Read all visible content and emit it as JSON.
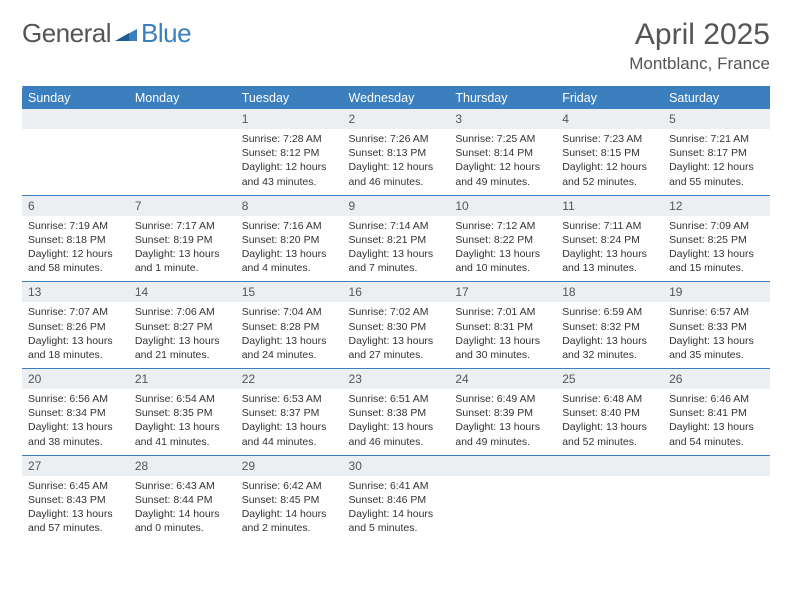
{
  "brand": {
    "word1": "General",
    "word2": "Blue"
  },
  "header": {
    "month": "April 2025",
    "location": "Montblanc, France"
  },
  "colors": {
    "accent": "#3b7fbf",
    "daybar": "#eceff1",
    "text": "#333",
    "header_text": "#555"
  },
  "weekdays": [
    "Sunday",
    "Monday",
    "Tuesday",
    "Wednesday",
    "Thursday",
    "Friday",
    "Saturday"
  ],
  "weeks": [
    [
      null,
      null,
      {
        "n": "1",
        "sr": "Sunrise: 7:28 AM",
        "ss": "Sunset: 8:12 PM",
        "dl": "Daylight: 12 hours and 43 minutes."
      },
      {
        "n": "2",
        "sr": "Sunrise: 7:26 AM",
        "ss": "Sunset: 8:13 PM",
        "dl": "Daylight: 12 hours and 46 minutes."
      },
      {
        "n": "3",
        "sr": "Sunrise: 7:25 AM",
        "ss": "Sunset: 8:14 PM",
        "dl": "Daylight: 12 hours and 49 minutes."
      },
      {
        "n": "4",
        "sr": "Sunrise: 7:23 AM",
        "ss": "Sunset: 8:15 PM",
        "dl": "Daylight: 12 hours and 52 minutes."
      },
      {
        "n": "5",
        "sr": "Sunrise: 7:21 AM",
        "ss": "Sunset: 8:17 PM",
        "dl": "Daylight: 12 hours and 55 minutes."
      }
    ],
    [
      {
        "n": "6",
        "sr": "Sunrise: 7:19 AM",
        "ss": "Sunset: 8:18 PM",
        "dl": "Daylight: 12 hours and 58 minutes."
      },
      {
        "n": "7",
        "sr": "Sunrise: 7:17 AM",
        "ss": "Sunset: 8:19 PM",
        "dl": "Daylight: 13 hours and 1 minute."
      },
      {
        "n": "8",
        "sr": "Sunrise: 7:16 AM",
        "ss": "Sunset: 8:20 PM",
        "dl": "Daylight: 13 hours and 4 minutes."
      },
      {
        "n": "9",
        "sr": "Sunrise: 7:14 AM",
        "ss": "Sunset: 8:21 PM",
        "dl": "Daylight: 13 hours and 7 minutes."
      },
      {
        "n": "10",
        "sr": "Sunrise: 7:12 AM",
        "ss": "Sunset: 8:22 PM",
        "dl": "Daylight: 13 hours and 10 minutes."
      },
      {
        "n": "11",
        "sr": "Sunrise: 7:11 AM",
        "ss": "Sunset: 8:24 PM",
        "dl": "Daylight: 13 hours and 13 minutes."
      },
      {
        "n": "12",
        "sr": "Sunrise: 7:09 AM",
        "ss": "Sunset: 8:25 PM",
        "dl": "Daylight: 13 hours and 15 minutes."
      }
    ],
    [
      {
        "n": "13",
        "sr": "Sunrise: 7:07 AM",
        "ss": "Sunset: 8:26 PM",
        "dl": "Daylight: 13 hours and 18 minutes."
      },
      {
        "n": "14",
        "sr": "Sunrise: 7:06 AM",
        "ss": "Sunset: 8:27 PM",
        "dl": "Daylight: 13 hours and 21 minutes."
      },
      {
        "n": "15",
        "sr": "Sunrise: 7:04 AM",
        "ss": "Sunset: 8:28 PM",
        "dl": "Daylight: 13 hours and 24 minutes."
      },
      {
        "n": "16",
        "sr": "Sunrise: 7:02 AM",
        "ss": "Sunset: 8:30 PM",
        "dl": "Daylight: 13 hours and 27 minutes."
      },
      {
        "n": "17",
        "sr": "Sunrise: 7:01 AM",
        "ss": "Sunset: 8:31 PM",
        "dl": "Daylight: 13 hours and 30 minutes."
      },
      {
        "n": "18",
        "sr": "Sunrise: 6:59 AM",
        "ss": "Sunset: 8:32 PM",
        "dl": "Daylight: 13 hours and 32 minutes."
      },
      {
        "n": "19",
        "sr": "Sunrise: 6:57 AM",
        "ss": "Sunset: 8:33 PM",
        "dl": "Daylight: 13 hours and 35 minutes."
      }
    ],
    [
      {
        "n": "20",
        "sr": "Sunrise: 6:56 AM",
        "ss": "Sunset: 8:34 PM",
        "dl": "Daylight: 13 hours and 38 minutes."
      },
      {
        "n": "21",
        "sr": "Sunrise: 6:54 AM",
        "ss": "Sunset: 8:35 PM",
        "dl": "Daylight: 13 hours and 41 minutes."
      },
      {
        "n": "22",
        "sr": "Sunrise: 6:53 AM",
        "ss": "Sunset: 8:37 PM",
        "dl": "Daylight: 13 hours and 44 minutes."
      },
      {
        "n": "23",
        "sr": "Sunrise: 6:51 AM",
        "ss": "Sunset: 8:38 PM",
        "dl": "Daylight: 13 hours and 46 minutes."
      },
      {
        "n": "24",
        "sr": "Sunrise: 6:49 AM",
        "ss": "Sunset: 8:39 PM",
        "dl": "Daylight: 13 hours and 49 minutes."
      },
      {
        "n": "25",
        "sr": "Sunrise: 6:48 AM",
        "ss": "Sunset: 8:40 PM",
        "dl": "Daylight: 13 hours and 52 minutes."
      },
      {
        "n": "26",
        "sr": "Sunrise: 6:46 AM",
        "ss": "Sunset: 8:41 PM",
        "dl": "Daylight: 13 hours and 54 minutes."
      }
    ],
    [
      {
        "n": "27",
        "sr": "Sunrise: 6:45 AM",
        "ss": "Sunset: 8:43 PM",
        "dl": "Daylight: 13 hours and 57 minutes."
      },
      {
        "n": "28",
        "sr": "Sunrise: 6:43 AM",
        "ss": "Sunset: 8:44 PM",
        "dl": "Daylight: 14 hours and 0 minutes."
      },
      {
        "n": "29",
        "sr": "Sunrise: 6:42 AM",
        "ss": "Sunset: 8:45 PM",
        "dl": "Daylight: 14 hours and 2 minutes."
      },
      {
        "n": "30",
        "sr": "Sunrise: 6:41 AM",
        "ss": "Sunset: 8:46 PM",
        "dl": "Daylight: 14 hours and 5 minutes."
      },
      null,
      null,
      null
    ]
  ]
}
